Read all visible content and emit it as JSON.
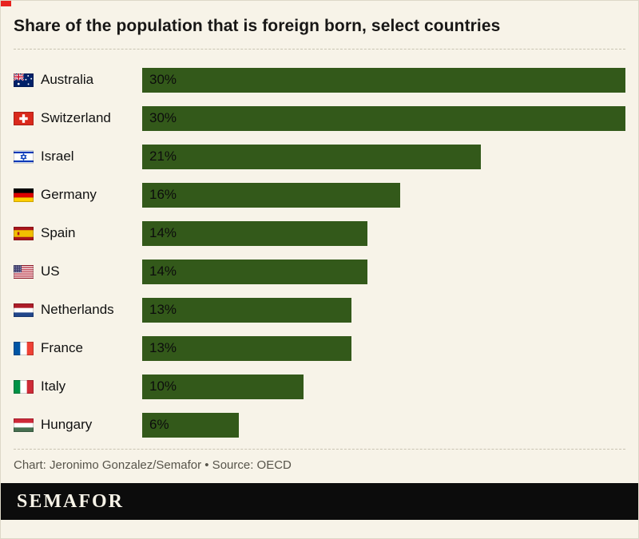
{
  "colors": {
    "background": "#f7f3e8",
    "accent_red": "#e8231f",
    "bar_green": "#33591a",
    "footer_bg": "#0c0c0c"
  },
  "chart_data": {
    "type": "bar",
    "orientation": "horizontal",
    "title": "Share of the population that is foreign born, select countries",
    "xlabel": "",
    "ylabel": "",
    "xlim": [
      0,
      30
    ],
    "value_suffix": "%",
    "grid": false,
    "legend": false,
    "categories": [
      "Australia",
      "Switzerland",
      "Israel",
      "Germany",
      "Spain",
      "US",
      "Netherlands",
      "France",
      "Italy",
      "Hungary"
    ],
    "values": [
      30,
      30,
      21,
      16,
      14,
      14,
      13,
      13,
      10,
      6
    ],
    "bar_labels": [
      "30%",
      "30%",
      "21%",
      "16%",
      "14%",
      "14%",
      "13%",
      "13%",
      "10%",
      "6%"
    ],
    "flag_codes": [
      "au",
      "ch",
      "il",
      "de",
      "es",
      "us",
      "nl",
      "fr",
      "it",
      "hu"
    ],
    "flag_icon_names": [
      "australia-flag-icon",
      "switzerland-flag-icon",
      "israel-flag-icon",
      "germany-flag-icon",
      "spain-flag-icon",
      "us-flag-icon",
      "netherlands-flag-icon",
      "france-flag-icon",
      "italy-flag-icon",
      "hungary-flag-icon"
    ]
  },
  "footer": {
    "credit": "Chart: Jeronimo Gonzalez/Semafor • Source: OECD",
    "brand": "SEMAFOR"
  }
}
